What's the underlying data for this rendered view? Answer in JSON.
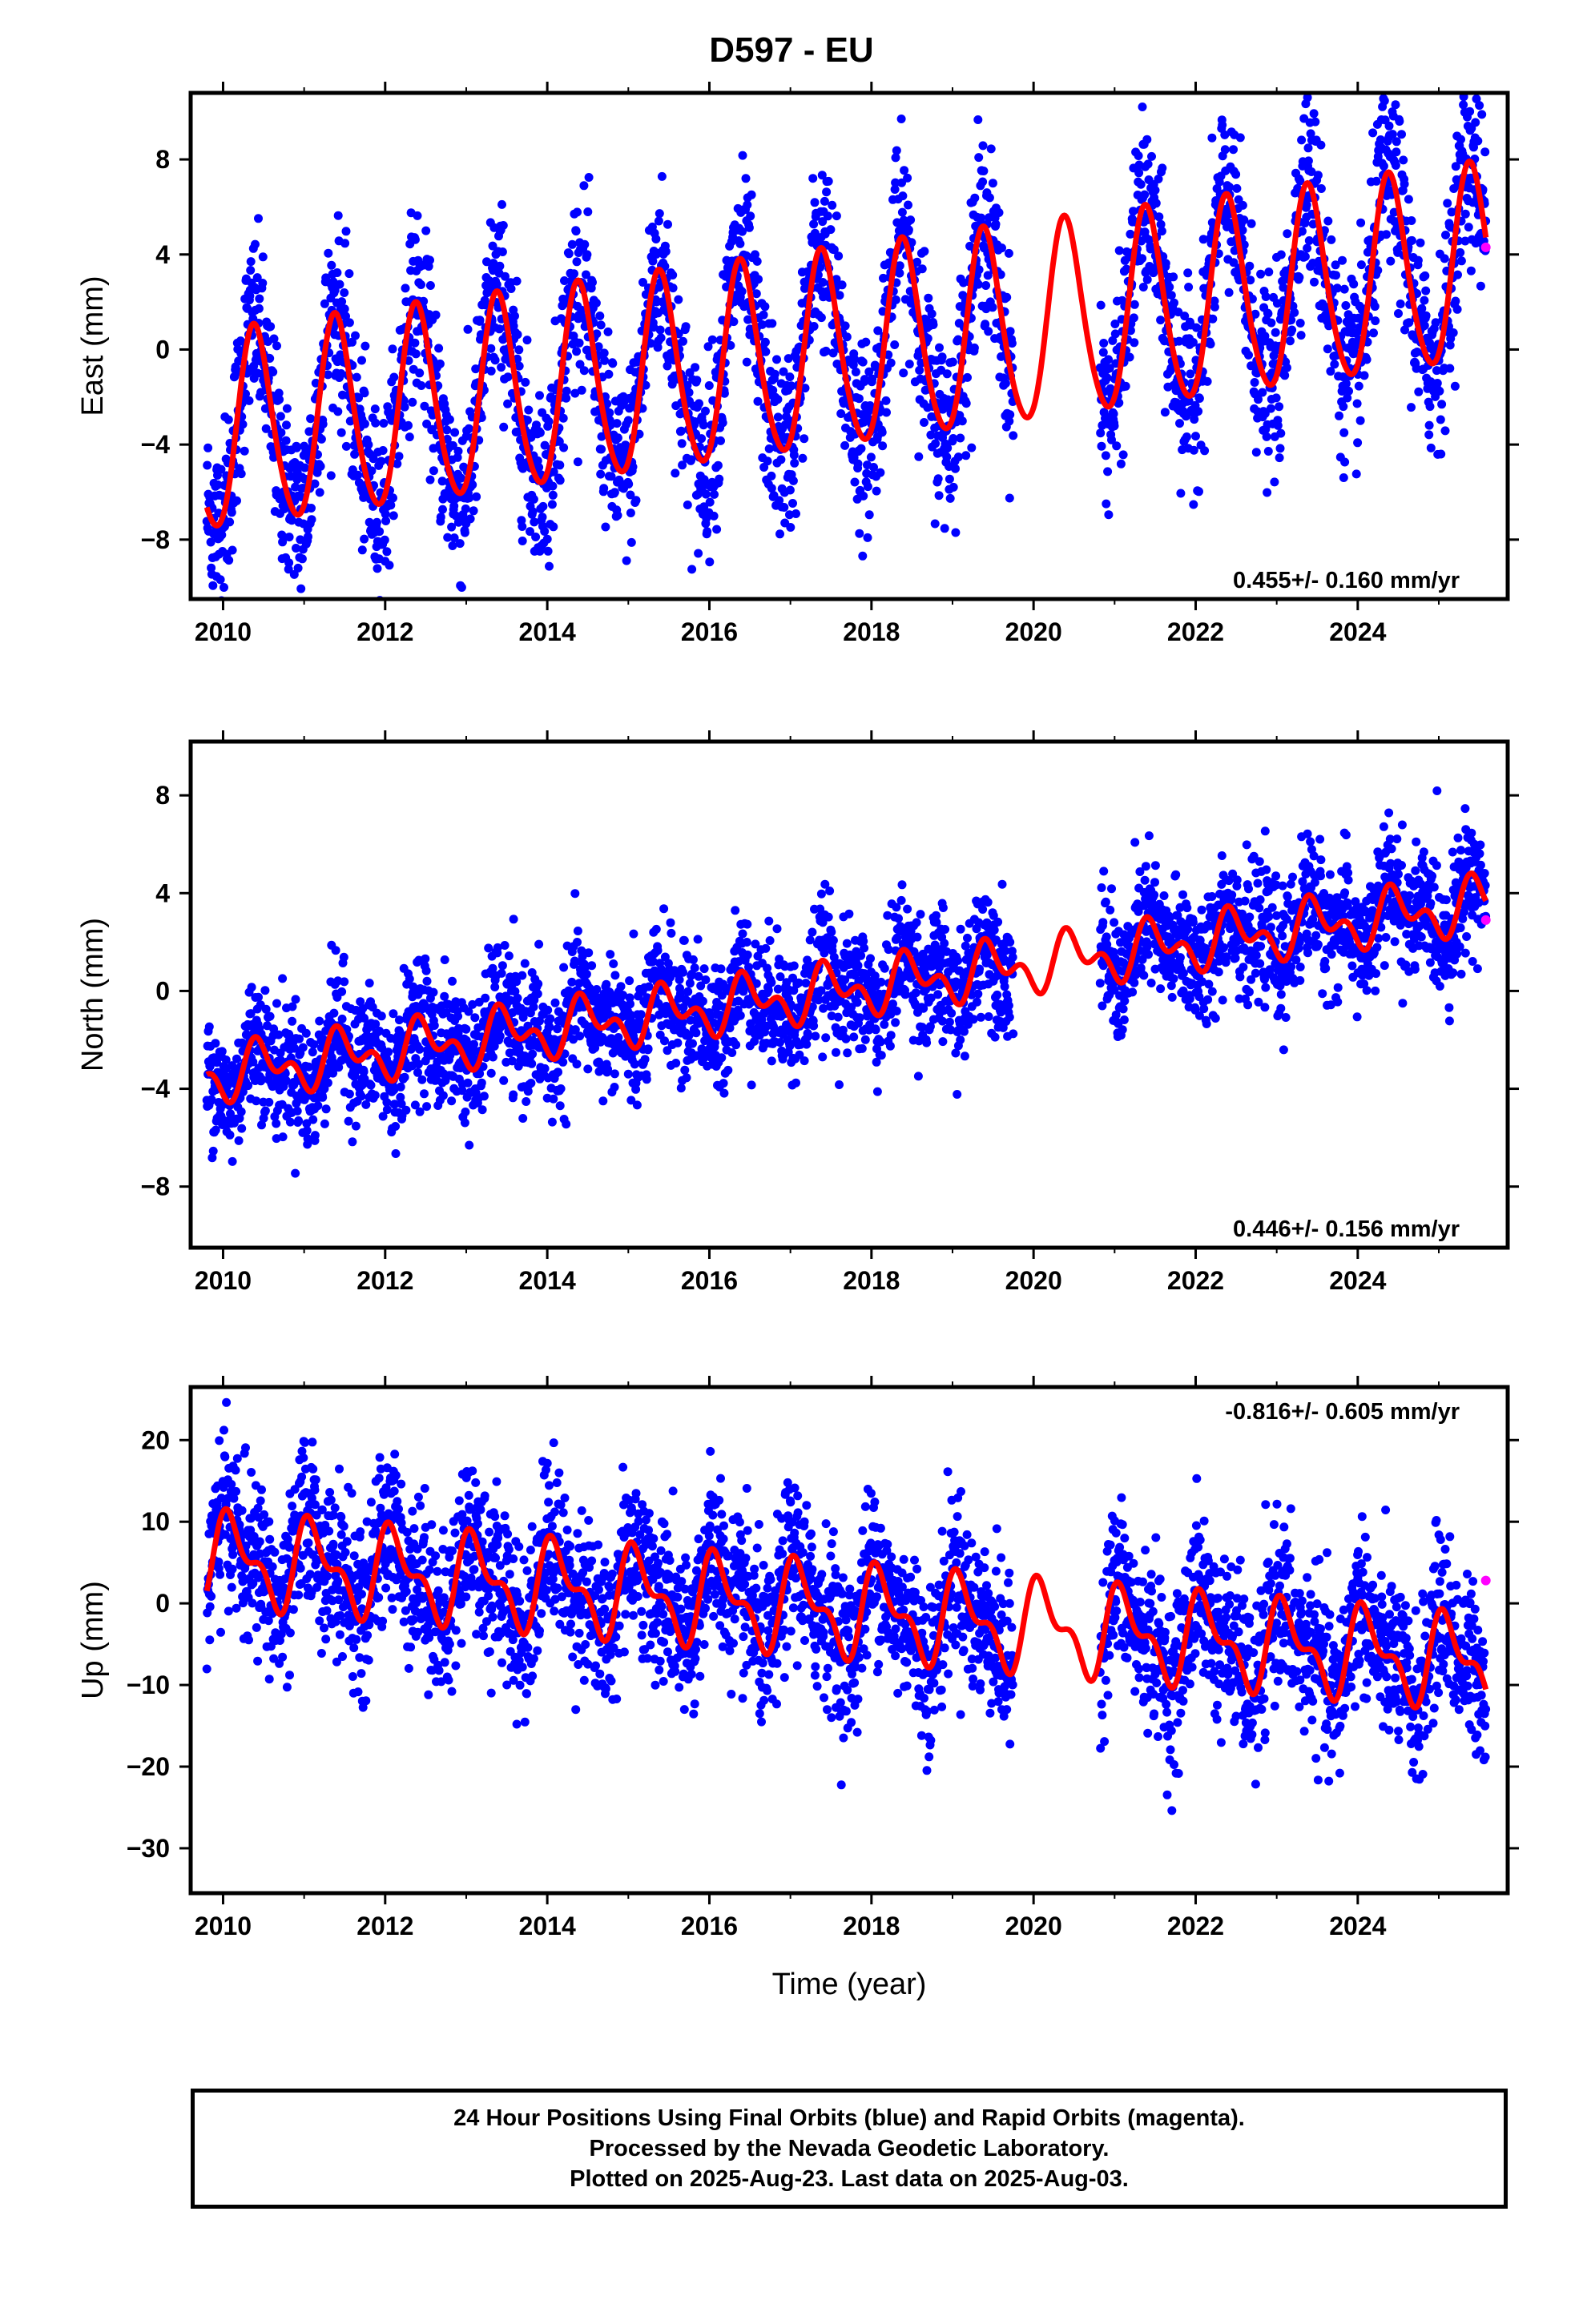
{
  "title": "D597 - EU",
  "footer": {
    "line1": "24 Hour Positions Using Final Orbits (blue) and Rapid Orbits (magenta).",
    "line2": "Processed by the Nevada Geodetic Laboratory.",
    "line3": "Plotted on 2025-Aug-23. Last data on 2025-Aug-03."
  },
  "colors": {
    "final_orbits": "#0000ff",
    "rapid_orbits": "#ff00ff",
    "model": "#ff0000"
  },
  "chart_data": [
    {
      "type": "scatter",
      "component": "east",
      "ylabel": "East (mm)",
      "xlabel": "",
      "xlim": [
        2009.6,
        2025.85
      ],
      "ylim": [
        -10.5,
        10.8
      ],
      "xticks": [
        2010,
        2012,
        2014,
        2016,
        2018,
        2020,
        2022,
        2024
      ],
      "yticks": [
        -8,
        -4,
        0,
        4,
        8
      ],
      "yticklabels": [
        "−8",
        "−4",
        "0",
        "4",
        "8"
      ],
      "rate_label": "0.455+/- 0.160 mm/yr",
      "rate_position": "bottom-right",
      "model": {
        "x0": 2017.8,
        "intercept": 0.0,
        "rate": 0.455,
        "seasonal_cos": -3.4,
        "seasonal_sin": -2.3,
        "semiannual_cos": 0.4,
        "semiannual_sin": 0.2
      },
      "scatter_std": 1.9,
      "data_start": 2009.8,
      "data_end": 2025.58,
      "gaps": [
        [
          2019.75,
          2020.82
        ]
      ],
      "rapid_points": [
        [
          2025.58,
          4.3
        ]
      ]
    },
    {
      "type": "scatter",
      "component": "north",
      "ylabel": "North (mm)",
      "xlabel": "",
      "xlim": [
        2009.6,
        2025.85
      ],
      "ylim": [
        -10.5,
        10.2
      ],
      "xticks": [
        2010,
        2012,
        2014,
        2016,
        2018,
        2020,
        2022,
        2024
      ],
      "yticks": [
        -8,
        -4,
        0,
        4,
        8
      ],
      "yticklabels": [
        "−8",
        "−4",
        "0",
        "4",
        "8"
      ],
      "rate_label": "0.446+/- 0.156 mm/yr",
      "rate_position": "bottom-right",
      "model": {
        "x0": 2017.8,
        "intercept": 0.1,
        "rate": 0.446,
        "seasonal_cos": -0.35,
        "seasonal_sin": -0.75,
        "semiannual_cos": 0.4,
        "semiannual_sin": 0.5
      },
      "scatter_std": 1.3,
      "data_start": 2009.8,
      "data_end": 2025.58,
      "gaps": [
        [
          2019.75,
          2020.82
        ]
      ],
      "rapid_points": [
        [
          2025.58,
          2.9
        ]
      ]
    },
    {
      "type": "scatter",
      "component": "up",
      "ylabel": "Up (mm)",
      "xlabel": "Time (year)",
      "xlim": [
        2009.6,
        2025.85
      ],
      "ylim": [
        -35.5,
        26.5
      ],
      "xticks": [
        2010,
        2012,
        2014,
        2016,
        2018,
        2020,
        2022,
        2024
      ],
      "yticks": [
        -30,
        -20,
        -10,
        0,
        10,
        20
      ],
      "yticklabels": [
        "−30",
        "−20",
        "−10",
        "0",
        "10",
        "20"
      ],
      "rate_label": "-0.816+/- 0.605 mm/yr",
      "rate_position": "top-right",
      "model": {
        "x0": 2017.8,
        "intercept": -1.0,
        "rate": -0.816,
        "seasonal_cos": -2.0,
        "seasonal_sin": 4.2,
        "semiannual_cos": -2.0,
        "semiannual_sin": 1.5
      },
      "scatter_std": 5.0,
      "data_start": 2009.8,
      "data_end": 2025.58,
      "gaps": [
        [
          2019.75,
          2020.82
        ]
      ],
      "rapid_points": [
        [
          2025.58,
          2.8
        ]
      ]
    }
  ]
}
